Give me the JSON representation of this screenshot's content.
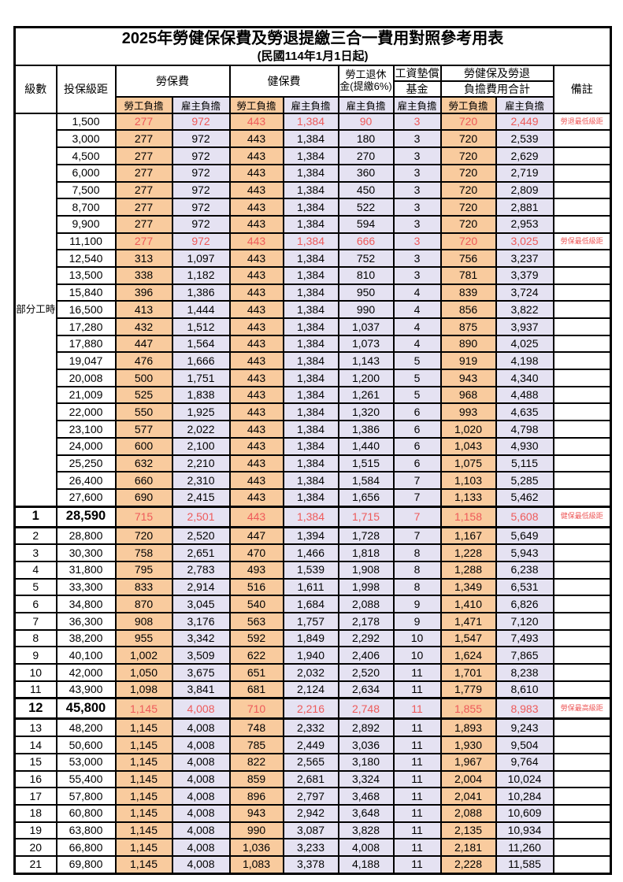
{
  "title": "2025年勞健保保費及勞退提繳三合一費用對照參考用表",
  "subtitle": "(民國114年1月1日起)",
  "columns": {
    "level": "級數",
    "salary": "投保級距",
    "labor_insurance": "勞保費",
    "health_insurance": "健保費",
    "pension": "勞工退休\n金(提繳6%)",
    "wage_fund_top": "工資墊償",
    "wage_fund_bottom": "基金",
    "total_top": "勞健保及勞退",
    "total_bottom": "負擔費用合計",
    "remark": "備註",
    "employee_share": "勞工負擔",
    "employer_share": "雇主負擔"
  },
  "colors": {
    "employee_col_bg": "#F9CB9E",
    "employer_col_bg": "#E5E2F2",
    "highlight_text": "#EE5A5A",
    "border": "#000000"
  },
  "part_time": {
    "label": "部分工時",
    "rowspan": 23
  },
  "rows": [
    {
      "level": null,
      "salary": "1,500",
      "values": [
        "277",
        "972",
        "443",
        "1,384",
        "90",
        "3",
        "720",
        "2,449"
      ],
      "remark": "勞退最低級距",
      "red": true,
      "emphasis": false
    },
    {
      "level": null,
      "salary": "3,000",
      "values": [
        "277",
        "972",
        "443",
        "1,384",
        "180",
        "3",
        "720",
        "2,539"
      ],
      "remark": "",
      "red": false,
      "emphasis": false
    },
    {
      "level": null,
      "salary": "4,500",
      "values": [
        "277",
        "972",
        "443",
        "1,384",
        "270",
        "3",
        "720",
        "2,629"
      ],
      "remark": "",
      "red": false,
      "emphasis": false
    },
    {
      "level": null,
      "salary": "6,000",
      "values": [
        "277",
        "972",
        "443",
        "1,384",
        "360",
        "3",
        "720",
        "2,719"
      ],
      "remark": "",
      "red": false,
      "emphasis": false
    },
    {
      "level": null,
      "salary": "7,500",
      "values": [
        "277",
        "972",
        "443",
        "1,384",
        "450",
        "3",
        "720",
        "2,809"
      ],
      "remark": "",
      "red": false,
      "emphasis": false
    },
    {
      "level": null,
      "salary": "8,700",
      "values": [
        "277",
        "972",
        "443",
        "1,384",
        "522",
        "3",
        "720",
        "2,881"
      ],
      "remark": "",
      "red": false,
      "emphasis": false
    },
    {
      "level": null,
      "salary": "9,900",
      "values": [
        "277",
        "972",
        "443",
        "1,384",
        "594",
        "3",
        "720",
        "2,953"
      ],
      "remark": "",
      "red": false,
      "emphasis": false
    },
    {
      "level": null,
      "salary": "11,100",
      "values": [
        "277",
        "972",
        "443",
        "1,384",
        "666",
        "3",
        "720",
        "3,025"
      ],
      "remark": "勞保最低級距",
      "red": true,
      "emphasis": false
    },
    {
      "level": null,
      "salary": "12,540",
      "values": [
        "313",
        "1,097",
        "443",
        "1,384",
        "752",
        "3",
        "756",
        "3,237"
      ],
      "remark": "",
      "red": false,
      "emphasis": false
    },
    {
      "level": null,
      "salary": "13,500",
      "values": [
        "338",
        "1,182",
        "443",
        "1,384",
        "810",
        "3",
        "781",
        "3,379"
      ],
      "remark": "",
      "red": false,
      "emphasis": false
    },
    {
      "level": null,
      "salary": "15,840",
      "values": [
        "396",
        "1,386",
        "443",
        "1,384",
        "950",
        "4",
        "839",
        "3,724"
      ],
      "remark": "",
      "red": false,
      "emphasis": false
    },
    {
      "level": null,
      "salary": "16,500",
      "values": [
        "413",
        "1,444",
        "443",
        "1,384",
        "990",
        "4",
        "856",
        "3,822"
      ],
      "remark": "",
      "red": false,
      "emphasis": false
    },
    {
      "level": null,
      "salary": "17,280",
      "values": [
        "432",
        "1,512",
        "443",
        "1,384",
        "1,037",
        "4",
        "875",
        "3,937"
      ],
      "remark": "",
      "red": false,
      "emphasis": false
    },
    {
      "level": null,
      "salary": "17,880",
      "values": [
        "447",
        "1,564",
        "443",
        "1,384",
        "1,073",
        "4",
        "890",
        "4,025"
      ],
      "remark": "",
      "red": false,
      "emphasis": false
    },
    {
      "level": null,
      "salary": "19,047",
      "values": [
        "476",
        "1,666",
        "443",
        "1,384",
        "1,143",
        "5",
        "919",
        "4,198"
      ],
      "remark": "",
      "red": false,
      "emphasis": false
    },
    {
      "level": null,
      "salary": "20,008",
      "values": [
        "500",
        "1,751",
        "443",
        "1,384",
        "1,200",
        "5",
        "943",
        "4,340"
      ],
      "remark": "",
      "red": false,
      "emphasis": false
    },
    {
      "level": null,
      "salary": "21,009",
      "values": [
        "525",
        "1,838",
        "443",
        "1,384",
        "1,261",
        "5",
        "968",
        "4,488"
      ],
      "remark": "",
      "red": false,
      "emphasis": false
    },
    {
      "level": null,
      "salary": "22,000",
      "values": [
        "550",
        "1,925",
        "443",
        "1,384",
        "1,320",
        "6",
        "993",
        "4,635"
      ],
      "remark": "",
      "red": false,
      "emphasis": false
    },
    {
      "level": null,
      "salary": "23,100",
      "values": [
        "577",
        "2,022",
        "443",
        "1,384",
        "1,386",
        "6",
        "1,020",
        "4,798"
      ],
      "remark": "",
      "red": false,
      "emphasis": false
    },
    {
      "level": null,
      "salary": "24,000",
      "values": [
        "600",
        "2,100",
        "443",
        "1,384",
        "1,440",
        "6",
        "1,043",
        "4,930"
      ],
      "remark": "",
      "red": false,
      "emphasis": false
    },
    {
      "level": null,
      "salary": "25,250",
      "values": [
        "632",
        "2,210",
        "443",
        "1,384",
        "1,515",
        "6",
        "1,075",
        "5,115"
      ],
      "remark": "",
      "red": false,
      "emphasis": false
    },
    {
      "level": null,
      "salary": "26,400",
      "values": [
        "660",
        "2,310",
        "443",
        "1,384",
        "1,584",
        "7",
        "1,103",
        "5,285"
      ],
      "remark": "",
      "red": false,
      "emphasis": false
    },
    {
      "level": null,
      "salary": "27,600",
      "values": [
        "690",
        "2,415",
        "443",
        "1,384",
        "1,656",
        "7",
        "1,133",
        "5,462"
      ],
      "remark": "",
      "red": false,
      "emphasis": false
    },
    {
      "level": "1",
      "salary": "28,590",
      "values": [
        "715",
        "2,501",
        "443",
        "1,384",
        "1,715",
        "7",
        "1,158",
        "5,608"
      ],
      "remark": "健保最低級距",
      "red": true,
      "emphasis": true
    },
    {
      "level": "2",
      "salary": "28,800",
      "values": [
        "720",
        "2,520",
        "447",
        "1,394",
        "1,728",
        "7",
        "1,167",
        "5,649"
      ],
      "remark": "",
      "red": false,
      "emphasis": false
    },
    {
      "level": "3",
      "salary": "30,300",
      "values": [
        "758",
        "2,651",
        "470",
        "1,466",
        "1,818",
        "8",
        "1,228",
        "5,943"
      ],
      "remark": "",
      "red": false,
      "emphasis": false
    },
    {
      "level": "4",
      "salary": "31,800",
      "values": [
        "795",
        "2,783",
        "493",
        "1,539",
        "1,908",
        "8",
        "1,288",
        "6,238"
      ],
      "remark": "",
      "red": false,
      "emphasis": false
    },
    {
      "level": "5",
      "salary": "33,300",
      "values": [
        "833",
        "2,914",
        "516",
        "1,611",
        "1,998",
        "8",
        "1,349",
        "6,531"
      ],
      "remark": "",
      "red": false,
      "emphasis": false
    },
    {
      "level": "6",
      "salary": "34,800",
      "values": [
        "870",
        "3,045",
        "540",
        "1,684",
        "2,088",
        "9",
        "1,410",
        "6,826"
      ],
      "remark": "",
      "red": false,
      "emphasis": false
    },
    {
      "level": "7",
      "salary": "36,300",
      "values": [
        "908",
        "3,176",
        "563",
        "1,757",
        "2,178",
        "9",
        "1,471",
        "7,120"
      ],
      "remark": "",
      "red": false,
      "emphasis": false
    },
    {
      "level": "8",
      "salary": "38,200",
      "values": [
        "955",
        "3,342",
        "592",
        "1,849",
        "2,292",
        "10",
        "1,547",
        "7,493"
      ],
      "remark": "",
      "red": false,
      "emphasis": false
    },
    {
      "level": "9",
      "salary": "40,100",
      "values": [
        "1,002",
        "3,509",
        "622",
        "1,940",
        "2,406",
        "10",
        "1,624",
        "7,865"
      ],
      "remark": "",
      "red": false,
      "emphasis": false
    },
    {
      "level": "10",
      "salary": "42,000",
      "values": [
        "1,050",
        "3,675",
        "651",
        "2,032",
        "2,520",
        "11",
        "1,701",
        "8,238"
      ],
      "remark": "",
      "red": false,
      "emphasis": false
    },
    {
      "level": "11",
      "salary": "43,900",
      "values": [
        "1,098",
        "3,841",
        "681",
        "2,124",
        "2,634",
        "11",
        "1,779",
        "8,610"
      ],
      "remark": "",
      "red": false,
      "emphasis": false
    },
    {
      "level": "12",
      "salary": "45,800",
      "values": [
        "1,145",
        "4,008",
        "710",
        "2,216",
        "2,748",
        "11",
        "1,855",
        "8,983"
      ],
      "remark": "勞保最高級距",
      "red": true,
      "emphasis": true
    },
    {
      "level": "13",
      "salary": "48,200",
      "values": [
        "1,145",
        "4,008",
        "748",
        "2,332",
        "2,892",
        "11",
        "1,893",
        "9,243"
      ],
      "remark": "",
      "red": false,
      "emphasis": false
    },
    {
      "level": "14",
      "salary": "50,600",
      "values": [
        "1,145",
        "4,008",
        "785",
        "2,449",
        "3,036",
        "11",
        "1,930",
        "9,504"
      ],
      "remark": "",
      "red": false,
      "emphasis": false
    },
    {
      "level": "15",
      "salary": "53,000",
      "values": [
        "1,145",
        "4,008",
        "822",
        "2,565",
        "3,180",
        "11",
        "1,967",
        "9,764"
      ],
      "remark": "",
      "red": false,
      "emphasis": false
    },
    {
      "level": "16",
      "salary": "55,400",
      "values": [
        "1,145",
        "4,008",
        "859",
        "2,681",
        "3,324",
        "11",
        "2,004",
        "10,024"
      ],
      "remark": "",
      "red": false,
      "emphasis": false
    },
    {
      "level": "17",
      "salary": "57,800",
      "values": [
        "1,145",
        "4,008",
        "896",
        "2,797",
        "3,468",
        "11",
        "2,041",
        "10,284"
      ],
      "remark": "",
      "red": false,
      "emphasis": false
    },
    {
      "level": "18",
      "salary": "60,800",
      "values": [
        "1,145",
        "4,008",
        "943",
        "2,942",
        "3,648",
        "11",
        "2,088",
        "10,609"
      ],
      "remark": "",
      "red": false,
      "emphasis": false
    },
    {
      "level": "19",
      "salary": "63,800",
      "values": [
        "1,145",
        "4,008",
        "990",
        "3,087",
        "3,828",
        "11",
        "2,135",
        "10,934"
      ],
      "remark": "",
      "red": false,
      "emphasis": false
    },
    {
      "level": "20",
      "salary": "66,800",
      "values": [
        "1,145",
        "4,008",
        "1,036",
        "3,233",
        "4,008",
        "11",
        "2,181",
        "11,260"
      ],
      "remark": "",
      "red": false,
      "emphasis": false
    },
    {
      "level": "21",
      "salary": "69,800",
      "values": [
        "1,145",
        "4,008",
        "1,083",
        "3,378",
        "4,188",
        "11",
        "2,228",
        "11,585"
      ],
      "remark": "",
      "red": false,
      "emphasis": false
    }
  ]
}
